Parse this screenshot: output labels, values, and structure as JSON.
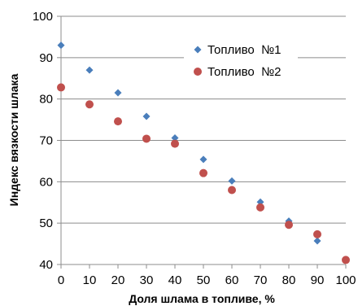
{
  "chart_data": {
    "type": "scatter",
    "xlabel": "Доля шлама в топливе, %",
    "ylabel": "Индекс вязкости шлака",
    "xlim": [
      0,
      100
    ],
    "ylim": [
      40,
      100
    ],
    "x_ticks": [
      0,
      10,
      20,
      30,
      40,
      50,
      60,
      70,
      80,
      90,
      100
    ],
    "y_ticks": [
      40,
      50,
      60,
      70,
      80,
      90,
      100
    ],
    "grid": "horizontal",
    "legend_position": "top-right",
    "series": [
      {
        "name": "Топливо  №1",
        "marker": "diamond",
        "color": "#4a7ebb",
        "x": [
          0,
          10,
          20,
          30,
          40,
          50,
          60,
          70,
          80,
          90
        ],
        "y": [
          93.0,
          87.0,
          81.5,
          75.8,
          70.6,
          65.4,
          60.2,
          55.1,
          50.5,
          45.7
        ]
      },
      {
        "name": "Топливо  №2",
        "marker": "circle",
        "color": "#c0504d",
        "x": [
          0,
          10,
          20,
          30,
          40,
          50,
          60,
          70,
          80,
          90,
          100
        ],
        "y": [
          82.8,
          78.7,
          74.6,
          70.4,
          69.2,
          62.1,
          58.0,
          53.8,
          49.6,
          47.3,
          41.1
        ]
      }
    ]
  }
}
